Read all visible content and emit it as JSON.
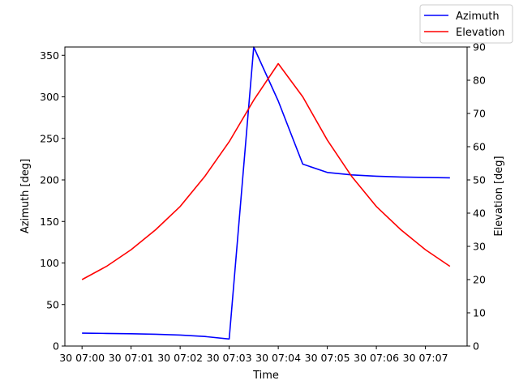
{
  "chart_data": {
    "type": "line",
    "title": "",
    "xlabel": "Time",
    "ylabel_left": "Azimuth [deg]",
    "ylabel_right": "Elevation [deg]",
    "x_tick_labels": [
      "30 07:00",
      "30 07:01",
      "30 07:02",
      "30 07:03",
      "30 07:04",
      "30 07:05",
      "30 07:06",
      "30 07:07"
    ],
    "x_tick_positions_min": [
      0,
      1,
      2,
      3,
      4,
      5,
      6,
      7
    ],
    "xlim_min": [
      -0.35,
      7.85
    ],
    "left_axis": {
      "ylim": [
        0,
        360
      ],
      "ticks": [
        0,
        50,
        100,
        150,
        200,
        250,
        300,
        350
      ]
    },
    "right_axis": {
      "ylim": [
        0,
        90
      ],
      "ticks": [
        0,
        10,
        20,
        30,
        40,
        50,
        60,
        70,
        80,
        90
      ]
    },
    "legend_position": "top-right",
    "series": [
      {
        "name": "Azimuth",
        "axis": "left",
        "color": "#0000ff",
        "x_min": [
          0,
          0.5,
          1,
          1.5,
          2,
          2.5,
          3,
          3.5,
          4,
          4.5,
          5,
          5.5,
          6,
          6.5,
          7,
          7.5
        ],
        "values": [
          15.5,
          15.2,
          14.8,
          14.2,
          13.2,
          11.5,
          8.5,
          360,
          295,
          219,
          209,
          206,
          204.5,
          203.5,
          203,
          202.5
        ]
      },
      {
        "name": "Elevation",
        "axis": "right",
        "color": "#ff0000",
        "x_min": [
          0,
          0.5,
          1,
          1.5,
          2,
          2.5,
          3,
          3.5,
          4,
          4.5,
          5,
          5.5,
          6,
          6.5,
          7,
          7.5
        ],
        "values": [
          20,
          24,
          29,
          35,
          42,
          51,
          61.5,
          74,
          85,
          75,
          62,
          51,
          42,
          35,
          29,
          24
        ]
      }
    ]
  }
}
